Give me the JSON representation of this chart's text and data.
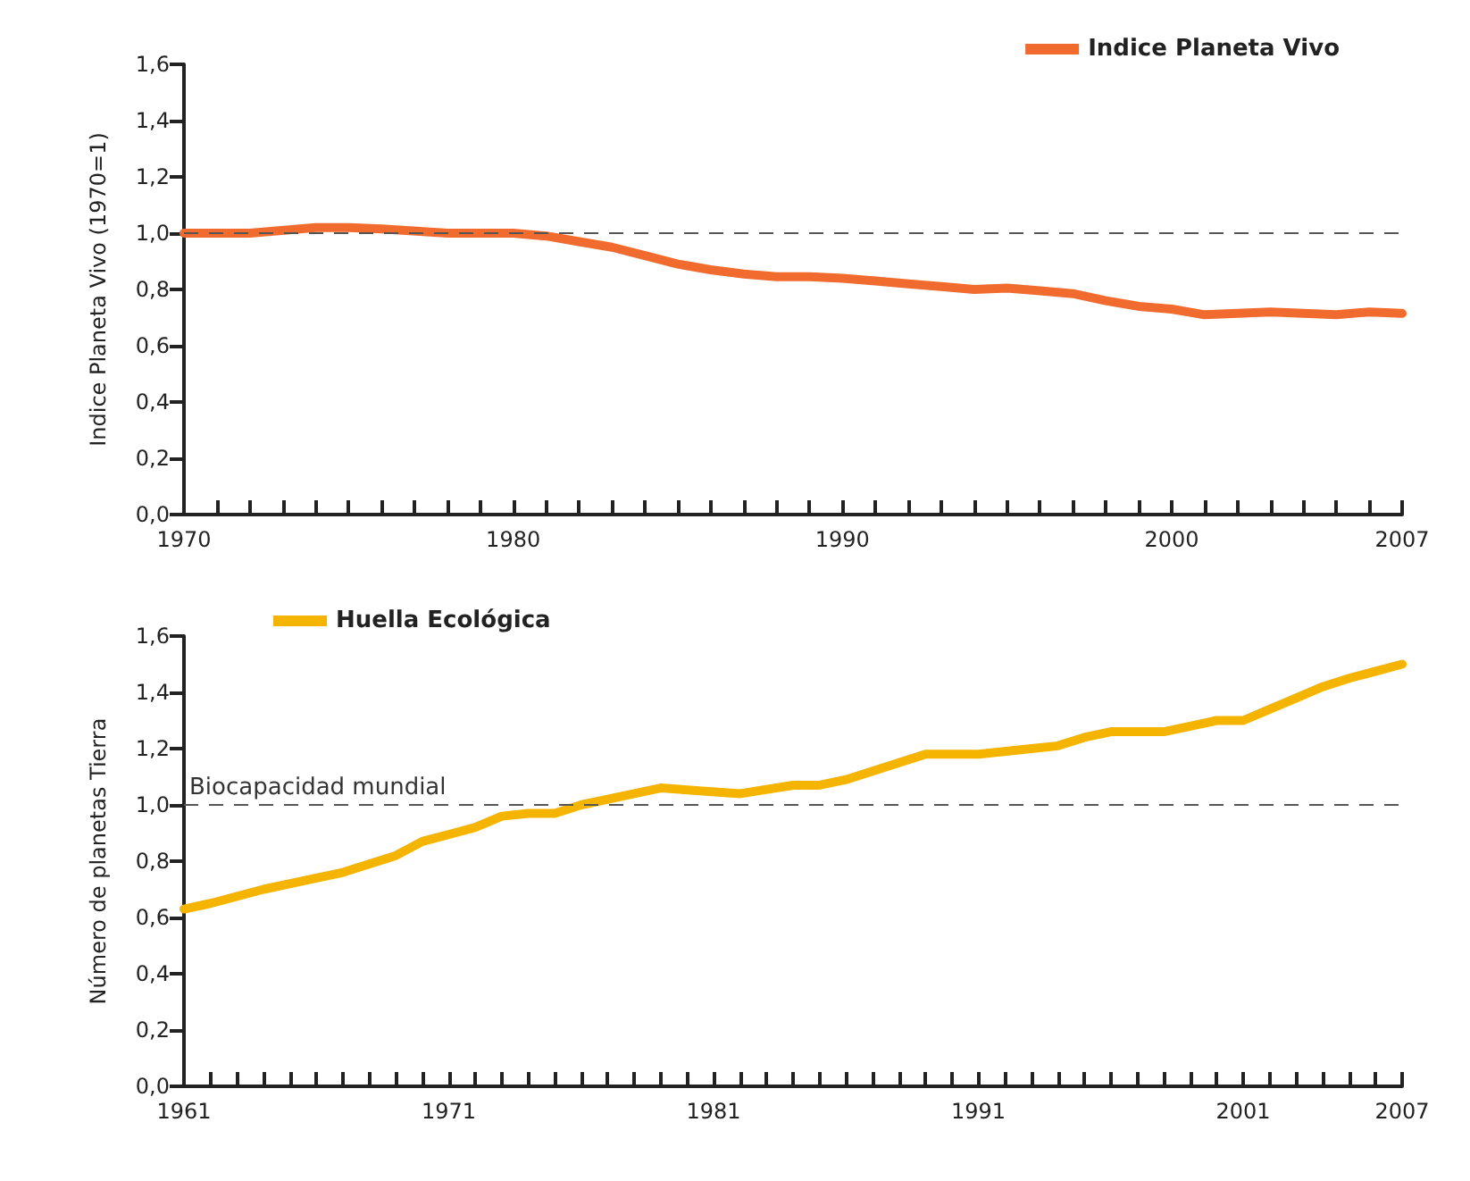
{
  "chart_data": [
    {
      "type": "line",
      "ylabel": "Indice Planeta Vivo (1970=1)",
      "legend": "top right",
      "line_style": "solid",
      "marker": "none",
      "grid": false,
      "series": [
        {
          "name": "Indice Planeta Vivo",
          "color": "#f26b2e",
          "x": [
            1970,
            1972,
            1974,
            1975,
            1976,
            1978,
            1980,
            1981,
            1982,
            1983,
            1984,
            1985,
            1986,
            1987,
            1988,
            1989,
            1990,
            1991,
            1992,
            1993,
            1994,
            1995,
            1996,
            1997,
            1998,
            1999,
            2000,
            2001,
            2002,
            2003,
            2004,
            2005,
            2006,
            2007
          ],
          "values": [
            1.0,
            1.0,
            1.02,
            1.02,
            1.015,
            1.0,
            1.0,
            0.99,
            0.97,
            0.95,
            0.92,
            0.89,
            0.87,
            0.855,
            0.845,
            0.845,
            0.84,
            0.83,
            0.82,
            0.81,
            0.8,
            0.805,
            0.795,
            0.785,
            0.76,
            0.74,
            0.73,
            0.71,
            0.715,
            0.72,
            0.715,
            0.71,
            0.72,
            0.715
          ]
        }
      ],
      "xlim": [
        1970,
        2007
      ],
      "xticks": [
        1970,
        {
          "value": 1971,
          "label": null
        },
        {
          "value": 1972,
          "label": null
        },
        {
          "value": 1973,
          "label": null
        },
        {
          "value": 1974,
          "label": null
        },
        {
          "value": 1975,
          "label": null
        },
        {
          "value": 1976,
          "label": null
        },
        {
          "value": 1977,
          "label": null
        },
        {
          "value": 1978,
          "label": null
        },
        {
          "value": 1979,
          "label": null
        },
        1980,
        {
          "value": 1981,
          "label": null
        },
        {
          "value": 1982,
          "label": null
        },
        {
          "value": 1983,
          "label": null
        },
        {
          "value": 1984,
          "label": null
        },
        {
          "value": 1985,
          "label": null
        },
        {
          "value": 1986,
          "label": null
        },
        {
          "value": 1987,
          "label": null
        },
        {
          "value": 1988,
          "label": null
        },
        {
          "value": 1989,
          "label": null
        },
        1990,
        {
          "value": 1991,
          "label": null
        },
        {
          "value": 1992,
          "label": null
        },
        {
          "value": 1993,
          "label": null
        },
        {
          "value": 1994,
          "label": null
        },
        {
          "value": 1995,
          "label": null
        },
        {
          "value": 1996,
          "label": null
        },
        {
          "value": 1997,
          "label": null
        },
        {
          "value": 1998,
          "label": null
        },
        {
          "value": 1999,
          "label": null
        },
        2000,
        {
          "value": 2001,
          "label": null
        },
        {
          "value": 2002,
          "label": null
        },
        {
          "value": 2003,
          "label": null
        },
        {
          "value": 2004,
          "label": null
        },
        {
          "value": 2005,
          "label": null
        },
        {
          "value": 2006,
          "label": null
        },
        2007
      ],
      "ylim": [
        0,
        1.6
      ],
      "yticks": [
        {
          "value": 0,
          "label": "0,0"
        },
        {
          "value": 0.2,
          "label": "0,2"
        },
        {
          "value": 0.4,
          "label": "0,4"
        },
        {
          "value": 0.6,
          "label": "0,6"
        },
        {
          "value": 0.8,
          "label": "0,8"
        },
        {
          "value": 1.0,
          "label": "1,0"
        },
        {
          "value": 1.2,
          "label": "1,2"
        },
        {
          "value": 1.4,
          "label": "1,4"
        },
        {
          "value": 1.6,
          "label": "1,6"
        }
      ],
      "ref_lines": [
        {
          "axis": "y",
          "value": 1.0,
          "label": null,
          "color": "#555555",
          "line_style": "dashed"
        }
      ]
    },
    {
      "type": "line",
      "ylabel": "Número de planetas Tierra",
      "legend": "top left",
      "line_style": "solid",
      "marker": "none",
      "grid": false,
      "series": [
        {
          "name": "Huella Ecológica",
          "color": "#f5b400",
          "x": [
            1961,
            1962,
            1964,
            1966,
            1967,
            1969,
            1970,
            1972,
            1973,
            1974,
            1975,
            1976,
            1978,
            1979,
            1982,
            1984,
            1985,
            1986,
            1988,
            1989,
            1991,
            1993,
            1994,
            1995,
            1996,
            1998,
            1999,
            2000,
            2001,
            2002,
            2003,
            2004,
            2005,
            2007
          ],
          "values": [
            0.63,
            0.65,
            0.7,
            0.74,
            0.76,
            0.82,
            0.87,
            0.92,
            0.96,
            0.97,
            0.97,
            1.0,
            1.04,
            1.06,
            1.04,
            1.07,
            1.07,
            1.09,
            1.15,
            1.18,
            1.18,
            1.2,
            1.21,
            1.24,
            1.26,
            1.26,
            1.28,
            1.3,
            1.3,
            1.34,
            1.38,
            1.42,
            1.45,
            1.5
          ]
        }
      ],
      "xlim": [
        1961,
        2007
      ],
      "xticks": [
        1961,
        {
          "value": 1962,
          "label": null
        },
        {
          "value": 1963,
          "label": null
        },
        {
          "value": 1964,
          "label": null
        },
        {
          "value": 1965,
          "label": null
        },
        {
          "value": 1966,
          "label": null
        },
        {
          "value": 1967,
          "label": null
        },
        {
          "value": 1968,
          "label": null
        },
        {
          "value": 1969,
          "label": null
        },
        {
          "value": 1970,
          "label": null
        },
        1971,
        {
          "value": 1972,
          "label": null
        },
        {
          "value": 1973,
          "label": null
        },
        {
          "value": 1974,
          "label": null
        },
        {
          "value": 1975,
          "label": null
        },
        {
          "value": 1976,
          "label": null
        },
        {
          "value": 1977,
          "label": null
        },
        {
          "value": 1978,
          "label": null
        },
        {
          "value": 1979,
          "label": null
        },
        {
          "value": 1980,
          "label": null
        },
        1981,
        {
          "value": 1982,
          "label": null
        },
        {
          "value": 1983,
          "label": null
        },
        {
          "value": 1984,
          "label": null
        },
        {
          "value": 1985,
          "label": null
        },
        {
          "value": 1986,
          "label": null
        },
        {
          "value": 1987,
          "label": null
        },
        {
          "value": 1988,
          "label": null
        },
        {
          "value": 1989,
          "label": null
        },
        {
          "value": 1990,
          "label": null
        },
        1991,
        {
          "value": 1992,
          "label": null
        },
        {
          "value": 1993,
          "label": null
        },
        {
          "value": 1994,
          "label": null
        },
        {
          "value": 1995,
          "label": null
        },
        {
          "value": 1996,
          "label": null
        },
        {
          "value": 1997,
          "label": null
        },
        {
          "value": 1998,
          "label": null
        },
        {
          "value": 1999,
          "label": null
        },
        {
          "value": 2000,
          "label": null
        },
        2001,
        {
          "value": 2002,
          "label": null
        },
        {
          "value": 2003,
          "label": null
        },
        {
          "value": 2004,
          "label": null
        },
        {
          "value": 2005,
          "label": null
        },
        {
          "value": 2006,
          "label": null
        },
        2007
      ],
      "ylim": [
        0,
        1.6
      ],
      "yticks": [
        {
          "value": 0,
          "label": "0,0"
        },
        {
          "value": 0.2,
          "label": "0,2"
        },
        {
          "value": 0.4,
          "label": "0,4"
        },
        {
          "value": 0.6,
          "label": "0,6"
        },
        {
          "value": 0.8,
          "label": "0,8"
        },
        {
          "value": 1.0,
          "label": "1,0"
        },
        {
          "value": 1.2,
          "label": "1,2"
        },
        {
          "value": 1.4,
          "label": "1,4"
        },
        {
          "value": 1.6,
          "label": "1,6"
        }
      ],
      "ref_lines": [
        {
          "axis": "y",
          "value": 1.0,
          "label": "Biocapacidad mundial",
          "color": "#555555",
          "line_style": "dashed"
        }
      ]
    }
  ]
}
